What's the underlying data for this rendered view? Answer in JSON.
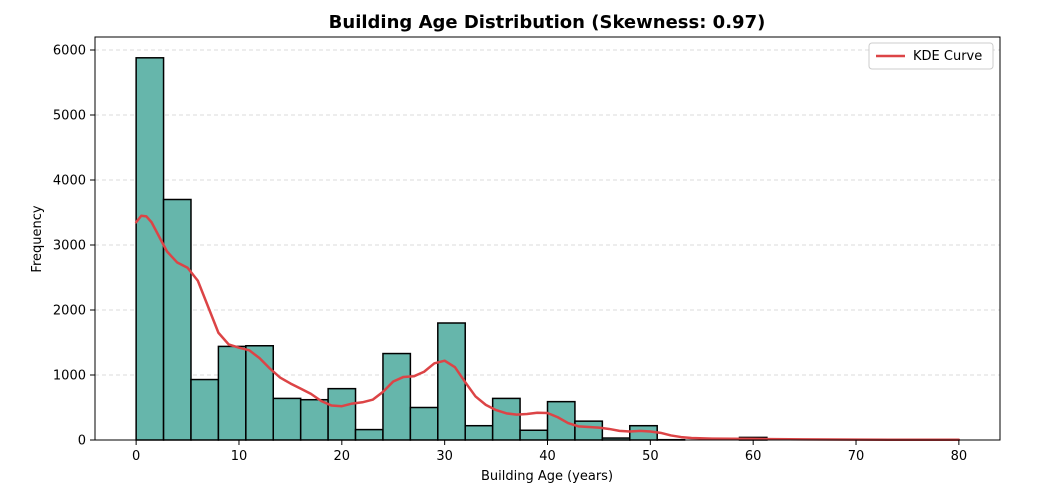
{
  "chart_data": {
    "type": "bar",
    "title": "Building Age Distribution (Skewness: 0.97)",
    "xlabel": "Building Age (years)",
    "ylabel": "Frequency",
    "xlim": [
      -4,
      84
    ],
    "ylim": [
      0,
      6200
    ],
    "xticks": [
      0,
      10,
      20,
      30,
      40,
      50,
      60,
      70,
      80
    ],
    "yticks": [
      0,
      1000,
      2000,
      3000,
      4000,
      5000,
      6000
    ],
    "grid": "y-dashed",
    "legend_position": "top-right",
    "bin_width": 2.667,
    "bins": [
      {
        "start": 0.0,
        "end": 2.667,
        "count": 5880
      },
      {
        "start": 2.667,
        "end": 5.333,
        "count": 3700
      },
      {
        "start": 5.333,
        "end": 8.0,
        "count": 930
      },
      {
        "start": 8.0,
        "end": 10.667,
        "count": 1440
      },
      {
        "start": 10.667,
        "end": 13.333,
        "count": 1450
      },
      {
        "start": 13.333,
        "end": 16.0,
        "count": 640
      },
      {
        "start": 16.0,
        "end": 18.667,
        "count": 620
      },
      {
        "start": 18.667,
        "end": 21.333,
        "count": 790
      },
      {
        "start": 21.333,
        "end": 24.0,
        "count": 160
      },
      {
        "start": 24.0,
        "end": 26.667,
        "count": 1330
      },
      {
        "start": 26.667,
        "end": 29.333,
        "count": 500
      },
      {
        "start": 29.333,
        "end": 32.0,
        "count": 1800
      },
      {
        "start": 32.0,
        "end": 34.667,
        "count": 220
      },
      {
        "start": 34.667,
        "end": 37.333,
        "count": 640
      },
      {
        "start": 37.333,
        "end": 40.0,
        "count": 150
      },
      {
        "start": 40.0,
        "end": 42.667,
        "count": 590
      },
      {
        "start": 42.667,
        "end": 45.333,
        "count": 290
      },
      {
        "start": 45.333,
        "end": 48.0,
        "count": 30
      },
      {
        "start": 48.0,
        "end": 50.667,
        "count": 220
      },
      {
        "start": 50.667,
        "end": 53.333,
        "count": 5
      },
      {
        "start": 53.333,
        "end": 56.0,
        "count": 0
      },
      {
        "start": 56.0,
        "end": 58.667,
        "count": 0
      },
      {
        "start": 58.667,
        "end": 61.333,
        "count": 40
      },
      {
        "start": 61.333,
        "end": 64.0,
        "count": 0
      },
      {
        "start": 64.0,
        "end": 66.667,
        "count": 0
      },
      {
        "start": 66.667,
        "end": 69.333,
        "count": 0
      },
      {
        "start": 69.333,
        "end": 72.0,
        "count": 0
      },
      {
        "start": 72.0,
        "end": 74.667,
        "count": 0
      },
      {
        "start": 74.667,
        "end": 77.333,
        "count": 0
      },
      {
        "start": 77.333,
        "end": 80.0,
        "count": 3
      }
    ],
    "series": [
      {
        "name": "KDE Curve",
        "type": "line",
        "color": "#dc4446",
        "x": [
          0,
          0.5,
          1,
          1.5,
          2,
          3,
          4,
          5,
          6,
          7,
          8,
          9,
          10,
          11,
          12,
          13,
          14,
          15,
          16,
          17,
          18,
          19,
          20,
          21,
          22,
          23,
          24,
          25,
          26,
          27,
          28,
          29,
          30,
          31,
          32,
          33,
          34,
          35,
          36,
          37,
          38,
          39,
          40,
          41,
          42,
          43,
          44,
          45,
          46,
          47,
          48,
          49,
          50,
          51,
          52,
          53,
          54,
          56,
          58,
          60,
          62,
          65,
          70,
          75,
          80
        ],
        "y": [
          3350,
          3450,
          3440,
          3350,
          3200,
          2900,
          2730,
          2650,
          2450,
          2050,
          1650,
          1470,
          1420,
          1380,
          1260,
          1100,
          960,
          870,
          790,
          710,
          600,
          530,
          520,
          560,
          580,
          620,
          740,
          900,
          970,
          980,
          1050,
          1180,
          1220,
          1120,
          890,
          670,
          540,
          460,
          410,
          390,
          400,
          420,
          415,
          350,
          260,
          210,
          200,
          190,
          170,
          140,
          130,
          140,
          130,
          110,
          70,
          45,
          30,
          22,
          20,
          18,
          14,
          10,
          6,
          4,
          3
        ]
      }
    ],
    "bar_color": "#66b6ab"
  }
}
